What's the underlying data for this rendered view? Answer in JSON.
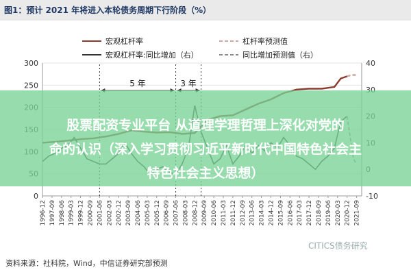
{
  "figure_title": "图1：预计 2021 年将进入本轮债务周期下行阶段（%）",
  "source_note": "资料来源：社科院，Wind，中信证券研究部预测",
  "watermark": "CITICS债务研究",
  "overlay": {
    "line1": "股票配资专业平台 从道理学理哲理上深化对党的",
    "line2": "命的认识（深入学习贯彻习近平新时代中国特色社会主",
    "line3": "特色社会主义思想）"
  },
  "chart_data": {
    "type": "line",
    "legend": [
      {
        "name": "宏观杠杆率",
        "color": "#8b3a2e",
        "style": "solid",
        "axis": "left"
      },
      {
        "name": "杠杆率预测值",
        "color": "#c9a7a3",
        "style": "dashed",
        "axis": "left"
      },
      {
        "name": "宏观杠杆率:同比增加（右）",
        "color": "#333333",
        "style": "solid",
        "axis": "right"
      },
      {
        "name": "同比增加预测值（右）",
        "color": "#888888",
        "style": "dashed",
        "axis": "right"
      }
    ],
    "legend_position": "top",
    "ylim_left": [
      0,
      300
    ],
    "yticks_left": [
      "0",
      "50",
      "100",
      "150",
      "200",
      "250",
      "300"
    ],
    "ylim_right": [
      -10,
      40
    ],
    "yticks_right": [
      "-10",
      "0",
      "10",
      "20",
      "30",
      "40"
    ],
    "x_ticks": [
      "1996-12",
      "1997-09",
      "1998-06",
      "1999-03",
      "1999-12",
      "2000-09",
      "2001-06",
      "2002-03",
      "2002-12",
      "2003-09",
      "2004-06",
      "2005-03",
      "2005-12",
      "2006-09",
      "2007-06",
      "2008-03",
      "2008-12",
      "2009-09",
      "2010-06",
      "2011-03",
      "2011-12",
      "2012-09",
      "2013-06",
      "2014-03",
      "2014-12",
      "2015-09",
      "2016-06",
      "2017-03",
      "2017-12",
      "2018-09",
      "2019-06",
      "2020-03",
      "2020-12",
      "2021-09"
    ],
    "annotations": [
      {
        "text": "5 年",
        "from": "2001-06",
        "to": "2007-06"
      },
      {
        "text": "3 年",
        "from": "2007-06",
        "to": "2009-06"
      }
    ],
    "grid": true,
    "series": [
      {
        "name": "宏观杠杆率",
        "x": [
          "1996-12",
          "1997-12",
          "1998-12",
          "1999-12",
          "2000-12",
          "2001-12",
          "2002-12",
          "2003-12",
          "2004-12",
          "2005-12",
          "2006-12",
          "2007-12",
          "2008-12",
          "2009-12",
          "2010-12",
          "2011-12",
          "2012-12",
          "2013-12",
          "2014-12",
          "2015-12",
          "2016-12",
          "2017-12",
          "2018-12",
          "2019-12",
          "2020-06",
          "2020-12"
        ],
        "values": [
          120,
          122,
          125,
          128,
          130,
          134,
          140,
          148,
          145,
          143,
          144,
          140,
          142,
          172,
          180,
          182,
          195,
          208,
          218,
          232,
          240,
          242,
          242,
          246,
          265,
          270
        ]
      },
      {
        "name": "杠杆率预测值",
        "x": [
          "2020-12",
          "2021-03",
          "2021-06",
          "2021-09"
        ],
        "values": [
          270,
          272,
          273,
          273
        ]
      },
      {
        "name": "宏观杠杆率:同比增加（右）",
        "x": [
          "1996-12",
          "1997-06",
          "1997-12",
          "1998-06",
          "1998-12",
          "1999-06",
          "1999-12",
          "2000-06",
          "2000-12",
          "2001-06",
          "2001-12",
          "2002-06",
          "2002-12",
          "2003-06",
          "2003-12",
          "2004-06",
          "2004-12",
          "2005-06",
          "2005-12",
          "2006-06",
          "2006-12",
          "2007-06",
          "2007-12",
          "2008-06",
          "2008-12",
          "2009-06",
          "2009-12",
          "2010-06",
          "2010-12",
          "2011-06",
          "2011-12",
          "2012-06",
          "2012-12",
          "2013-06",
          "2013-12",
          "2014-06",
          "2014-12",
          "2015-06",
          "2015-12",
          "2016-06",
          "2016-12",
          "2017-06",
          "2017-12",
          "2018-06",
          "2018-12",
          "2019-06",
          "2019-12",
          "2020-06",
          "2020-12"
        ],
        "values": [
          3,
          5,
          6,
          8,
          9,
          12,
          8,
          4,
          3,
          2,
          2,
          4,
          6,
          10,
          6,
          3,
          1,
          -2,
          0,
          1,
          -1,
          -2,
          2,
          8,
          24,
          14,
          8,
          2,
          4,
          9,
          2,
          5,
          9,
          6,
          9,
          7,
          10,
          8,
          12,
          9,
          5,
          4,
          2,
          0,
          3,
          5,
          8,
          18,
          20
        ]
      },
      {
        "name": "同比增加预测值（右）",
        "x": [
          "2020-12",
          "2021-03",
          "2021-06",
          "2021-09"
        ],
        "values": [
          20,
          12,
          4,
          2
        ]
      }
    ]
  }
}
